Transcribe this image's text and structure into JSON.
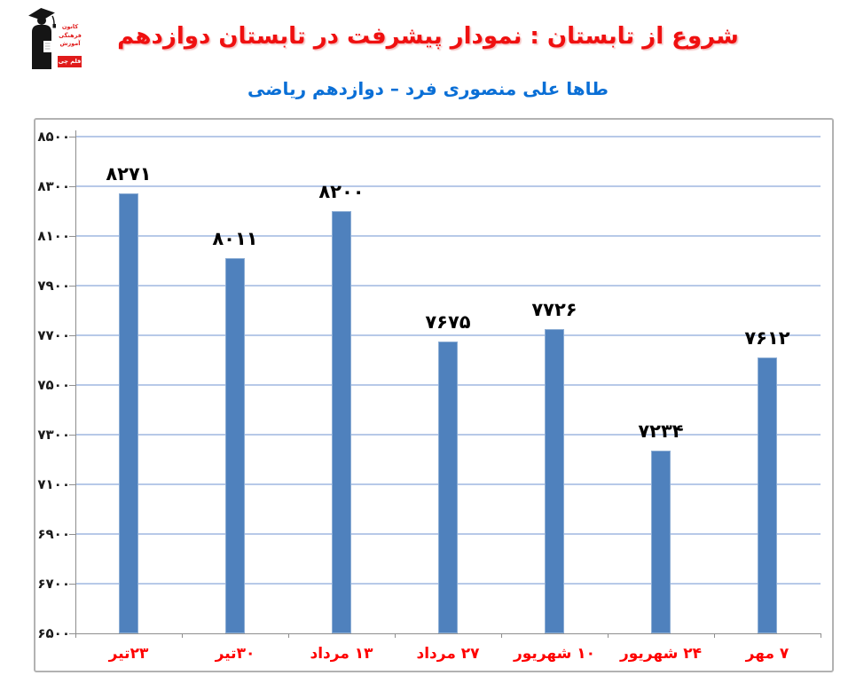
{
  "header": {
    "title": "شروع از تابستان : نمودار پیشرفت در تابستان دوازدهم",
    "title_color": "#ef1010",
    "subtitle": "طاها علی منصوری فرد – دوازدهم ریاضی",
    "subtitle_color": "#0a6fd6"
  },
  "logo": {
    "side_text_lines": [
      "کانون",
      "فرهنگی",
      "آموزش"
    ],
    "badge_text": "قلم چی",
    "accent_color": "#e01b1b"
  },
  "chart_data": {
    "type": "bar",
    "categories": [
      "۲۳تیر",
      "۳۰تیر",
      "۱۳ مرداد",
      "۲۷ مرداد",
      "۱۰ شهریور",
      "۲۴ شهریور",
      "۷ مهر"
    ],
    "values": [
      8271,
      8011,
      8200,
      7675,
      7726,
      7234,
      7612
    ],
    "ylim": [
      6500,
      8500
    ],
    "ytick_step": 200,
    "digit_style": "persian",
    "grid": true,
    "legend": false,
    "bar_color": "#4f81bd",
    "gridline_color": "#b7c9e8",
    "axis_color": "#8e8e8e",
    "value_label_color": "#000000",
    "category_label_color": "#fe0000",
    "ytick_label_color": "#1a1a1a"
  }
}
